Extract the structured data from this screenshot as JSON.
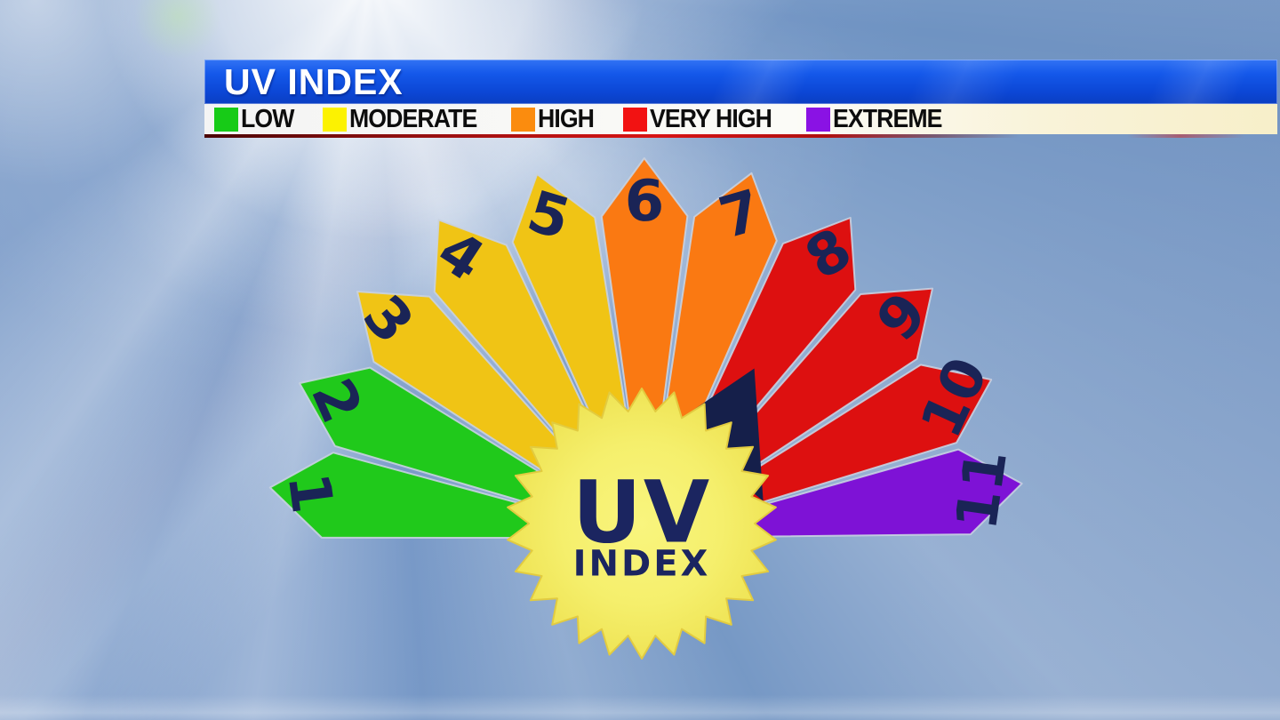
{
  "header": {
    "title": "UV INDEX"
  },
  "legend": {
    "items": [
      {
        "label": "LOW",
        "color": "#17CB17"
      },
      {
        "label": "MODERATE",
        "color": "#FCF201"
      },
      {
        "label": "HIGH",
        "color": "#FB8C0E"
      },
      {
        "label": "VERY HIGH",
        "color": "#F21212"
      },
      {
        "label": "EXTREME",
        "color": "#8A12E4"
      }
    ]
  },
  "gauge": {
    "center_label": {
      "primary": "UV",
      "secondary": "INDEX"
    },
    "number_color": "#1A2456",
    "edge_color": "rgba(200,210,225,0.9)",
    "needle": {
      "value": 8,
      "color": "#151F4A"
    },
    "badge": {
      "fill_center": "#F9F57E",
      "fill_mid": "#F5EF6C",
      "fill_edge": "#EFE456",
      "stroke": "#E2CB40",
      "text_color": "#1B2560"
    },
    "segments": [
      {
        "value": 1,
        "category": "LOW",
        "color": "#20C91B"
      },
      {
        "value": 2,
        "category": "LOW",
        "color": "#20C91B"
      },
      {
        "value": 3,
        "category": "MODERATE",
        "color": "#F0C415"
      },
      {
        "value": 4,
        "category": "MODERATE",
        "color": "#F0C415"
      },
      {
        "value": 5,
        "category": "MODERATE",
        "color": "#F0C415"
      },
      {
        "value": 6,
        "category": "HIGH",
        "color": "#FA7912"
      },
      {
        "value": 7,
        "category": "HIGH",
        "color": "#FA7912"
      },
      {
        "value": 8,
        "category": "VERY HIGH",
        "color": "#DD1010"
      },
      {
        "value": 9,
        "category": "VERY HIGH",
        "color": "#DD1010"
      },
      {
        "value": 10,
        "category": "VERY HIGH",
        "color": "#DD1010"
      },
      {
        "value": 11,
        "category": "EXTREME",
        "color": "#7E12D6"
      }
    ]
  },
  "chart_data": {
    "type": "gauge",
    "title": "UV INDEX",
    "values": [
      1,
      2,
      3,
      4,
      5,
      6,
      7,
      8,
      9,
      10,
      11
    ],
    "bands": [
      {
        "label": "LOW",
        "range": [
          1,
          2
        ],
        "color": "#20C91B"
      },
      {
        "label": "MODERATE",
        "range": [
          3,
          5
        ],
        "color": "#F0C415"
      },
      {
        "label": "HIGH",
        "range": [
          6,
          7
        ],
        "color": "#FA7912"
      },
      {
        "label": "VERY HIGH",
        "range": [
          8,
          10
        ],
        "color": "#DD1010"
      },
      {
        "label": "EXTREME",
        "range": [
          11,
          11
        ],
        "color": "#7E12D6"
      }
    ],
    "needle_points_at": 8,
    "center_label": "UV INDEX",
    "legend_position": "top",
    "angular_span_deg": 180,
    "orientation": "semicircle-up"
  }
}
